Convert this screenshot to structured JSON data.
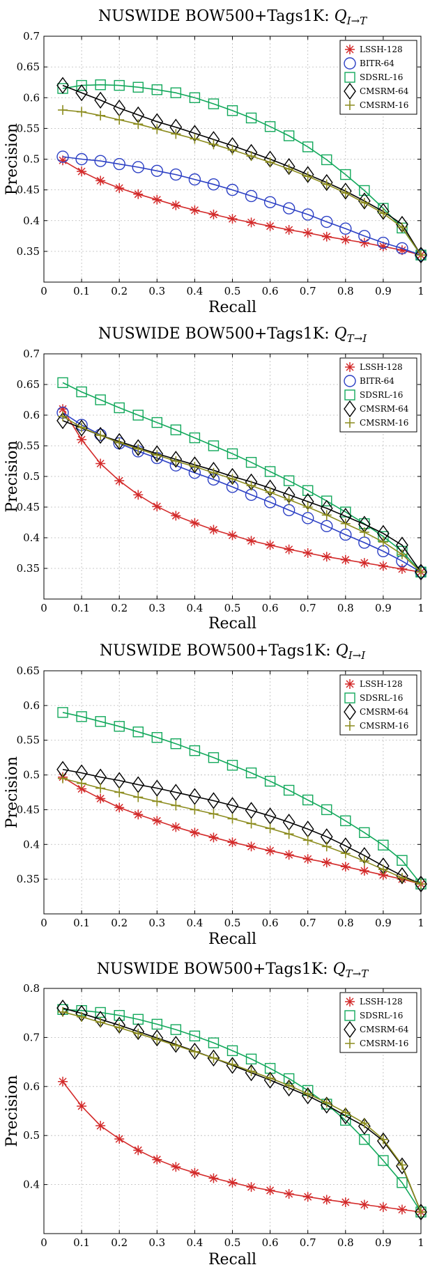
{
  "colors": {
    "LSSH-128": "#d32a2a",
    "BITR-64": "#2b3fc4",
    "SDSRL-16": "#12a85b",
    "CMSRM-64": "#000000",
    "CMSRM-16": "#8c8c1e"
  },
  "chart_data": [
    {
      "type": "line",
      "title": "NUSWIDE BOW500+Tags1K: ",
      "title_math_main": "Q",
      "title_math_sub": "I→T",
      "xlabel": "Recall",
      "ylabel": "Precision",
      "xlim": [
        0,
        1
      ],
      "ylim": [
        0.3,
        0.7
      ],
      "xticks": [
        "0",
        "0.1",
        "0.2",
        "0.3",
        "0.4",
        "0.5",
        "0.6",
        "0.7",
        "0.8",
        "0.9",
        "1"
      ],
      "yticks": [
        "0.35",
        "0.4",
        "0.45",
        "0.5",
        "0.55",
        "0.6",
        "0.65",
        "0.7"
      ],
      "grid": true,
      "legend_position": "top-right",
      "x": [
        0.05,
        0.1,
        0.15,
        0.2,
        0.25,
        0.3,
        0.35,
        0.4,
        0.45,
        0.5,
        0.55,
        0.6,
        0.65,
        0.7,
        0.75,
        0.8,
        0.85,
        0.9,
        0.95,
        1.0
      ],
      "series": [
        {
          "name": "LSSH-128",
          "marker": "asterisk",
          "values": [
            0.498,
            0.48,
            0.465,
            0.453,
            0.443,
            0.434,
            0.425,
            0.417,
            0.41,
            0.403,
            0.397,
            0.391,
            0.385,
            0.38,
            0.374,
            0.369,
            0.364,
            0.358,
            0.352,
            0.344
          ]
        },
        {
          "name": "BITR-64",
          "marker": "circle",
          "values": [
            0.504,
            0.5,
            0.497,
            0.492,
            0.487,
            0.481,
            0.475,
            0.467,
            0.459,
            0.45,
            0.44,
            0.43,
            0.42,
            0.41,
            0.398,
            0.387,
            0.375,
            0.364,
            0.355,
            0.344
          ]
        },
        {
          "name": "SDSRL-16",
          "marker": "square",
          "values": [
            0.615,
            0.62,
            0.621,
            0.62,
            0.617,
            0.613,
            0.608,
            0.6,
            0.59,
            0.579,
            0.567,
            0.553,
            0.538,
            0.52,
            0.499,
            0.475,
            0.449,
            0.42,
            0.388,
            0.344
          ]
        },
        {
          "name": "CMSRM-64",
          "marker": "diamond",
          "values": [
            0.62,
            0.608,
            0.596,
            0.583,
            0.572,
            0.561,
            0.552,
            0.542,
            0.532,
            0.522,
            0.511,
            0.5,
            0.488,
            0.475,
            0.462,
            0.448,
            0.432,
            0.415,
            0.394,
            0.344
          ]
        },
        {
          "name": "CMSRM-16",
          "marker": "plus",
          "values": [
            0.58,
            0.577,
            0.571,
            0.564,
            0.557,
            0.549,
            0.541,
            0.533,
            0.524,
            0.515,
            0.505,
            0.495,
            0.484,
            0.472,
            0.459,
            0.445,
            0.429,
            0.412,
            0.389,
            0.344
          ]
        }
      ]
    },
    {
      "type": "line",
      "title": "NUSWIDE BOW500+Tags1K: ",
      "title_math_main": "Q",
      "title_math_sub": "T→I",
      "xlabel": "Recall",
      "ylabel": "Precision",
      "xlim": [
        0,
        1
      ],
      "ylim": [
        0.3,
        0.7
      ],
      "xticks": [
        "0",
        "0.1",
        "0.2",
        "0.3",
        "0.4",
        "0.5",
        "0.6",
        "0.7",
        "0.8",
        "0.9",
        "1"
      ],
      "yticks": [
        "0.35",
        "0.4",
        "0.45",
        "0.5",
        "0.55",
        "0.6",
        "0.65",
        "0.7"
      ],
      "grid": true,
      "legend_position": "top-right",
      "x": [
        0.05,
        0.1,
        0.15,
        0.2,
        0.25,
        0.3,
        0.35,
        0.4,
        0.45,
        0.5,
        0.55,
        0.6,
        0.65,
        0.7,
        0.75,
        0.8,
        0.85,
        0.9,
        0.95,
        1.0
      ],
      "series": [
        {
          "name": "LSSH-128",
          "marker": "asterisk",
          "values": [
            0.61,
            0.56,
            0.521,
            0.493,
            0.47,
            0.451,
            0.436,
            0.424,
            0.413,
            0.404,
            0.395,
            0.388,
            0.381,
            0.375,
            0.369,
            0.364,
            0.359,
            0.354,
            0.349,
            0.344
          ]
        },
        {
          "name": "BITR-64",
          "marker": "circle",
          "values": [
            0.604,
            0.584,
            0.568,
            0.554,
            0.541,
            0.53,
            0.518,
            0.506,
            0.495,
            0.483,
            0.47,
            0.458,
            0.445,
            0.432,
            0.419,
            0.405,
            0.392,
            0.378,
            0.362,
            0.344
          ]
        },
        {
          "name": "SDSRL-16",
          "marker": "square",
          "values": [
            0.653,
            0.638,
            0.625,
            0.612,
            0.6,
            0.588,
            0.576,
            0.563,
            0.55,
            0.537,
            0.523,
            0.508,
            0.493,
            0.477,
            0.46,
            0.442,
            0.423,
            0.402,
            0.378,
            0.344
          ]
        },
        {
          "name": "CMSRM-64",
          "marker": "diamond",
          "values": [
            0.591,
            0.579,
            0.567,
            0.557,
            0.547,
            0.537,
            0.528,
            0.519,
            0.51,
            0.5,
            0.491,
            0.481,
            0.47,
            0.459,
            0.448,
            0.435,
            0.422,
            0.407,
            0.388,
            0.344
          ]
        },
        {
          "name": "CMSRM-16",
          "marker": "plus",
          "values": [
            0.598,
            0.58,
            0.567,
            0.555,
            0.545,
            0.535,
            0.525,
            0.516,
            0.506,
            0.496,
            0.485,
            0.474,
            0.462,
            0.45,
            0.437,
            0.423,
            0.409,
            0.393,
            0.373,
            0.344
          ]
        }
      ]
    },
    {
      "type": "line",
      "title": "NUSWIDE BOW500+Tags1K: ",
      "title_math_main": "Q",
      "title_math_sub": "I→I",
      "xlabel": "Recall",
      "ylabel": "Precision",
      "xlim": [
        0,
        1
      ],
      "ylim": [
        0.3,
        0.65
      ],
      "xticks": [
        "0",
        "0.1",
        "0.2",
        "0.3",
        "0.4",
        "0.5",
        "0.6",
        "0.7",
        "0.8",
        "0.9",
        "1"
      ],
      "yticks": [
        "0.35",
        "0.4",
        "0.45",
        "0.5",
        "0.55",
        "0.6",
        "0.65"
      ],
      "grid": true,
      "legend_position": "top-right",
      "x": [
        0.05,
        0.1,
        0.15,
        0.2,
        0.25,
        0.3,
        0.35,
        0.4,
        0.45,
        0.5,
        0.55,
        0.6,
        0.65,
        0.7,
        0.75,
        0.8,
        0.85,
        0.9,
        0.95,
        1.0
      ],
      "series": [
        {
          "name": "LSSH-128",
          "marker": "asterisk",
          "values": [
            0.497,
            0.48,
            0.466,
            0.453,
            0.443,
            0.434,
            0.425,
            0.417,
            0.41,
            0.403,
            0.397,
            0.391,
            0.385,
            0.379,
            0.374,
            0.368,
            0.362,
            0.356,
            0.35,
            0.343
          ]
        },
        {
          "name": "SDSRL-16",
          "marker": "square",
          "values": [
            0.59,
            0.584,
            0.577,
            0.57,
            0.562,
            0.554,
            0.545,
            0.535,
            0.525,
            0.514,
            0.503,
            0.491,
            0.478,
            0.464,
            0.45,
            0.434,
            0.417,
            0.399,
            0.377,
            0.343
          ]
        },
        {
          "name": "CMSRM-64",
          "marker": "diamond",
          "values": [
            0.508,
            0.503,
            0.497,
            0.492,
            0.486,
            0.481,
            0.475,
            0.469,
            0.463,
            0.456,
            0.449,
            0.441,
            0.432,
            0.422,
            0.411,
            0.398,
            0.384,
            0.369,
            0.355,
            0.343
          ]
        },
        {
          "name": "CMSRM-16",
          "marker": "plus",
          "values": [
            0.495,
            0.488,
            0.481,
            0.475,
            0.468,
            0.462,
            0.456,
            0.45,
            0.444,
            0.437,
            0.43,
            0.423,
            0.415,
            0.406,
            0.397,
            0.387,
            0.376,
            0.364,
            0.352,
            0.343
          ]
        }
      ]
    },
    {
      "type": "line",
      "title": "NUSWIDE BOW500+Tags1K: ",
      "title_math_main": "Q",
      "title_math_sub": "T→T",
      "xlabel": "Recall",
      "ylabel": "Precision",
      "xlim": [
        0,
        1
      ],
      "ylim": [
        0.3,
        0.8
      ],
      "xticks": [
        "0",
        "0.1",
        "0.2",
        "0.3",
        "0.4",
        "0.5",
        "0.6",
        "0.7",
        "0.8",
        "0.9",
        "1"
      ],
      "yticks": [
        "0.4",
        "0.5",
        "0.6",
        "0.7",
        "0.8"
      ],
      "grid": true,
      "legend_position": "top-right",
      "x": [
        0.05,
        0.1,
        0.15,
        0.2,
        0.25,
        0.3,
        0.35,
        0.4,
        0.45,
        0.5,
        0.55,
        0.6,
        0.65,
        0.7,
        0.75,
        0.8,
        0.85,
        0.9,
        0.95,
        1.0
      ],
      "series": [
        {
          "name": "LSSH-128",
          "marker": "asterisk",
          "values": [
            0.61,
            0.56,
            0.52,
            0.493,
            0.47,
            0.451,
            0.436,
            0.424,
            0.413,
            0.404,
            0.395,
            0.388,
            0.381,
            0.375,
            0.369,
            0.364,
            0.359,
            0.354,
            0.349,
            0.344
          ]
        },
        {
          "name": "SDSRL-16",
          "marker": "square",
          "values": [
            0.757,
            0.755,
            0.751,
            0.745,
            0.737,
            0.727,
            0.716,
            0.703,
            0.689,
            0.673,
            0.656,
            0.637,
            0.616,
            0.592,
            0.564,
            0.531,
            0.492,
            0.449,
            0.404,
            0.344
          ]
        },
        {
          "name": "CMSRM-64",
          "marker": "diamond",
          "values": [
            0.76,
            0.749,
            0.737,
            0.725,
            0.712,
            0.699,
            0.686,
            0.672,
            0.658,
            0.643,
            0.628,
            0.613,
            0.597,
            0.581,
            0.562,
            0.54,
            0.519,
            0.489,
            0.438,
            0.344
          ]
        },
        {
          "name": "CMSRM-16",
          "marker": "plus",
          "values": [
            0.752,
            0.742,
            0.731,
            0.72,
            0.708,
            0.696,
            0.684,
            0.671,
            0.658,
            0.645,
            0.631,
            0.617,
            0.602,
            0.585,
            0.567,
            0.547,
            0.525,
            0.492,
            0.44,
            0.344
          ]
        }
      ]
    }
  ]
}
